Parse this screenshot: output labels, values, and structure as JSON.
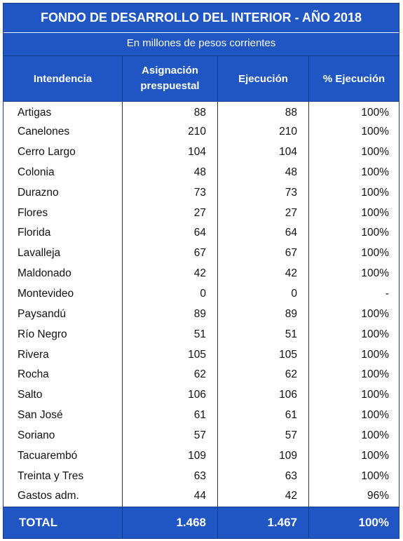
{
  "title": "FONDO DE DESARROLLO DEL INTERIOR - AÑO 2018",
  "subtitle": "En millones de pesos corrientes",
  "headers": {
    "col1": "Intendencia",
    "col2_line1": "Asignación",
    "col2_line2": "prespuestal",
    "col3": "Ejecución",
    "col4": "% Ejecución"
  },
  "rows": [
    {
      "name": "Artigas",
      "asignacion": "88",
      "ejecucion": "88",
      "pct": "100%"
    },
    {
      "name": "Canelones",
      "asignacion": "210",
      "ejecucion": "210",
      "pct": "100%"
    },
    {
      "name": "Cerro Largo",
      "asignacion": "104",
      "ejecucion": "104",
      "pct": "100%"
    },
    {
      "name": "Colonia",
      "asignacion": "48",
      "ejecucion": "48",
      "pct": "100%"
    },
    {
      "name": "Durazno",
      "asignacion": "73",
      "ejecucion": "73",
      "pct": "100%"
    },
    {
      "name": "Flores",
      "asignacion": "27",
      "ejecucion": "27",
      "pct": "100%"
    },
    {
      "name": "Florida",
      "asignacion": "64",
      "ejecucion": "64",
      "pct": "100%"
    },
    {
      "name": "Lavalleja",
      "asignacion": "67",
      "ejecucion": "67",
      "pct": "100%"
    },
    {
      "name": "Maldonado",
      "asignacion": "42",
      "ejecucion": "42",
      "pct": "100%"
    },
    {
      "name": "Montevideo",
      "asignacion": "0",
      "ejecucion": "0",
      "pct": "-"
    },
    {
      "name": "Paysandú",
      "asignacion": "89",
      "ejecucion": "89",
      "pct": "100%"
    },
    {
      "name": "Río Negro",
      "asignacion": "51",
      "ejecucion": "51",
      "pct": "100%"
    },
    {
      "name": "Rivera",
      "asignacion": "105",
      "ejecucion": "105",
      "pct": "100%"
    },
    {
      "name": "Rocha",
      "asignacion": "62",
      "ejecucion": "62",
      "pct": "100%"
    },
    {
      "name": "Salto",
      "asignacion": "106",
      "ejecucion": "106",
      "pct": "100%"
    },
    {
      "name": "San José",
      "asignacion": "61",
      "ejecucion": "61",
      "pct": "100%"
    },
    {
      "name": "Soriano",
      "asignacion": "57",
      "ejecucion": "57",
      "pct": "100%"
    },
    {
      "name": "Tacuarembó",
      "asignacion": "109",
      "ejecucion": "109",
      "pct": "100%"
    },
    {
      "name": "Treinta y Tres",
      "asignacion": "63",
      "ejecucion": "63",
      "pct": "100%"
    },
    {
      "name": "Gastos adm.",
      "asignacion": "44",
      "ejecucion": "42",
      "pct": "96%"
    }
  ],
  "total": {
    "label": "TOTAL",
    "asignacion": "1.468",
    "ejecucion": "1.467",
    "pct": "100%"
  },
  "colors": {
    "header_blue": "#1f56c4",
    "border_dark": "#123a8a"
  }
}
